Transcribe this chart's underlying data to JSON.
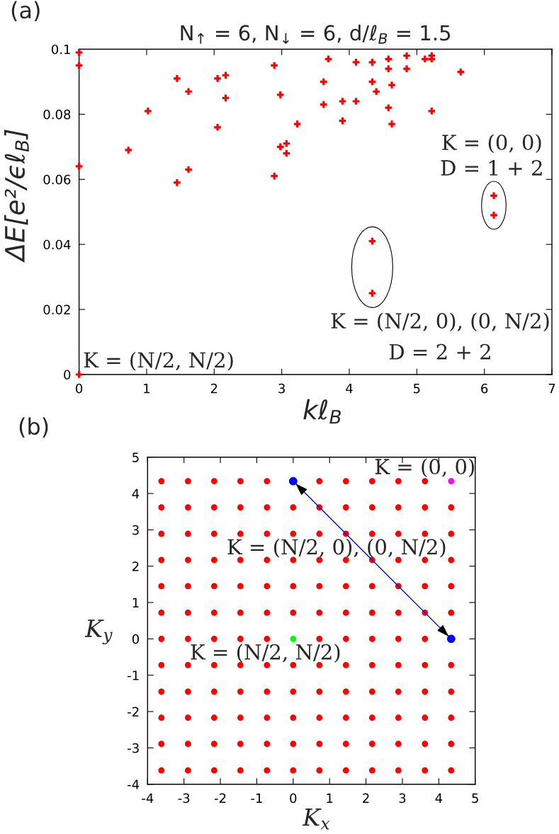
{
  "chart_data": [
    {
      "type": "scatter",
      "title": "N$_{↑}$ = 6, N$_{↓}$ = 6, d/ℓ$_{B}$ = 1.5",
      "xlabel": "kℓ$_{B}$",
      "ylabel": "ΔE[e²/ϵℓ$_{B}$]",
      "xlim": [
        0,
        7
      ],
      "ylim": [
        0,
        0.1
      ],
      "xticks": [
        0,
        1,
        2,
        3,
        4,
        5,
        6,
        7
      ],
      "yticks": [
        0,
        0.02,
        0.04,
        0.06,
        0.08,
        0.1
      ],
      "marker": "cross",
      "series": [
        {
          "color": "#ff0000",
          "x": [
            0,
            0,
            0,
            0,
            0.73,
            1.02,
            1.45,
            1.45,
            1.62,
            1.62,
            2.05,
            2.05,
            2.17,
            2.17,
            2.89,
            2.89,
            2.98,
            2.98,
            3.07,
            3.07,
            3.23,
            3.62,
            3.62,
            3.69,
            3.9,
            3.9,
            4.1,
            4.1,
            4.34,
            4.34,
            4.34,
            4.34,
            4.4,
            4.58,
            4.58,
            4.58,
            4.63,
            4.63,
            4.85,
            4.85,
            5.12,
            5.22,
            5.22,
            5.22,
            5.65,
            6.14,
            6.14
          ],
          "values": [
            0.099,
            0.095,
            0.064,
            0,
            0.069,
            0.081,
            0.091,
            0.059,
            0.087,
            0.063,
            0.091,
            0.076,
            0.092,
            0.085,
            0.095,
            0.061,
            0.086,
            0.07,
            0.071,
            0.068,
            0.077,
            0.09,
            0.083,
            0.097,
            0.084,
            0.078,
            0.096,
            0.084,
            0.096,
            0.09,
            0.041,
            0.025,
            0.087,
            0.097,
            0.094,
            0.082,
            0.089,
            0.077,
            0.098,
            0.094,
            0.097,
            0.098,
            0.097,
            0.081,
            0.093,
            0.055,
            0.049
          ]
        }
      ],
      "annotations": [
        "(a)",
        "K = (0, 0)\nD = 1 + 2",
        "K = (N/2, 0), (0, N/2)\nD = 2 + 2",
        {
          "text": "K = (N/2, N/2)",
          "x": 0,
          "y": 0
        }
      ]
    },
    {
      "type": "scatter",
      "xlabel": "K$_{x}$",
      "ylabel": "K$_{y}$",
      "xlim": [
        -4,
        5
      ],
      "ylim": [
        -4,
        5
      ],
      "xticks": [
        -4,
        -3,
        -2,
        -1,
        0,
        1,
        2,
        3,
        4,
        5
      ],
      "yticks": [
        -4,
        -3,
        -2,
        -1,
        0,
        1,
        2,
        3,
        4,
        5
      ],
      "marker": "circle",
      "series": [
        {
          "color": "#ff0000",
          "x": [
            -3.62,
            -2.89,
            -2.17,
            -1.45,
            -0.72,
            0.72,
            1.45,
            2.17,
            2.89,
            3.62,
            -3.62,
            -2.89,
            -2.17,
            -1.45,
            -0.72,
            0,
            0.72,
            1.45,
            2.17,
            2.89,
            3.62,
            4.34,
            -3.62,
            -2.89,
            -2.17,
            -1.45,
            -0.72,
            0,
            0.72,
            1.45,
            2.17,
            2.89,
            3.62,
            4.34,
            -3.62,
            -2.89,
            -2.17,
            -1.45,
            -0.72,
            0,
            0.72,
            1.45,
            2.17,
            2.89,
            3.62,
            4.34,
            -3.62,
            -2.89,
            -2.17,
            -1.45,
            -0.72,
            0,
            0.72,
            1.45,
            2.17,
            2.89,
            3.62,
            4.34,
            -3.62,
            -2.89,
            -2.17,
            -1.45,
            -0.72,
            0,
            0.72,
            1.45,
            2.17,
            2.89,
            3.62,
            4.34,
            -3.62,
            -2.89,
            -2.17,
            -1.45,
            -0.72,
            0.72,
            1.45,
            2.17,
            2.89,
            3.62,
            -3.62,
            -2.89,
            -2.17,
            -1.45,
            -0.72,
            0,
            0.72,
            1.45,
            2.17,
            2.89,
            3.62,
            4.34,
            -3.62,
            -2.89,
            -2.17,
            -1.45,
            -0.72,
            0,
            0.72,
            1.45,
            2.17,
            2.89,
            3.62,
            4.34,
            -3.62,
            -2.89,
            -2.17,
            -1.45,
            -0.72,
            0,
            0.72,
            1.45,
            2.17,
            2.89,
            3.62,
            4.34,
            -3.62,
            -2.89,
            -2.17,
            -1.45,
            -0.72,
            0,
            0.72,
            1.45,
            2.17,
            2.89,
            3.62,
            4.34,
            -3.62,
            -2.89,
            -2.17,
            -1.45,
            -0.72,
            0,
            0.72,
            1.45,
            2.17,
            2.89,
            3.62,
            4.34
          ],
          "values": [
            4.34,
            4.34,
            4.34,
            4.34,
            4.34,
            4.34,
            4.34,
            4.34,
            4.34,
            4.34,
            3.62,
            3.62,
            3.62,
            3.62,
            3.62,
            3.62,
            3.62,
            3.62,
            3.62,
            3.62,
            3.62,
            3.62,
            2.89,
            2.89,
            2.89,
            2.89,
            2.89,
            2.89,
            2.89,
            2.89,
            2.89,
            2.89,
            2.89,
            2.89,
            2.17,
            2.17,
            2.17,
            2.17,
            2.17,
            2.17,
            2.17,
            2.17,
            2.17,
            2.17,
            2.17,
            2.17,
            1.45,
            1.45,
            1.45,
            1.45,
            1.45,
            1.45,
            1.45,
            1.45,
            1.45,
            1.45,
            1.45,
            1.45,
            0.72,
            0.72,
            0.72,
            0.72,
            0.72,
            0.72,
            0.72,
            0.72,
            0.72,
            0.72,
            0.72,
            0.72,
            0,
            0,
            0,
            0,
            0,
            0,
            0,
            0,
            0,
            0,
            -0.72,
            -0.72,
            -0.72,
            -0.72,
            -0.72,
            -0.72,
            -0.72,
            -0.72,
            -0.72,
            -0.72,
            -0.72,
            -0.72,
            -1.45,
            -1.45,
            -1.45,
            -1.45,
            -1.45,
            -1.45,
            -1.45,
            -1.45,
            -1.45,
            -1.45,
            -1.45,
            -1.45,
            -2.17,
            -2.17,
            -2.17,
            -2.17,
            -2.17,
            -2.17,
            -2.17,
            -2.17,
            -2.17,
            -2.17,
            -2.17,
            -2.17,
            -2.89,
            -2.89,
            -2.89,
            -2.89,
            -2.89,
            -2.89,
            -2.89,
            -2.89,
            -2.89,
            -2.89,
            -2.89,
            -2.89,
            -3.62,
            -3.62,
            -3.62,
            -3.62,
            -3.62,
            -3.62,
            -3.62,
            -3.62,
            -3.62,
            -3.62,
            -3.62,
            -3.62
          ]
        },
        {
          "color": "#00ff00",
          "x": [
            0
          ],
          "values": [
            0
          ]
        },
        {
          "color": "#ff00ff",
          "x": [
            4.34
          ],
          "values": [
            4.34
          ]
        },
        {
          "type": "line",
          "color": "#0000ff",
          "x": [
            4.34,
            0
          ],
          "values": [
            0,
            4.34
          ]
        }
      ],
      "annotations": [
        "(b)",
        {
          "text": "K = (0, 0)",
          "x": 4.34,
          "y": 4.34
        },
        {
          "text": "K = (N/2, 0), (0, N/2)",
          "x": 2.17,
          "y": 2.17
        },
        {
          "text": "K = (N/2, N/2)",
          "x": 0,
          "y": 0
        }
      ]
    }
  ]
}
